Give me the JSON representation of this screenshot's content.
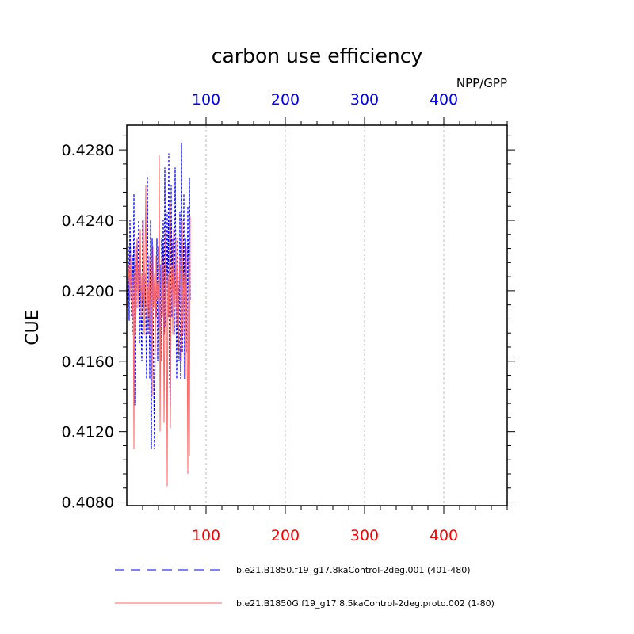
{
  "chart_data": {
    "type": "line",
    "title": "carbon use efficiency",
    "subtitle": "NPP/GPP",
    "ylabel": "CUE",
    "xlabel": "",
    "xlim": [
      0,
      480
    ],
    "ylim": [
      0.4078,
      0.4294
    ],
    "x_ticks": [
      100,
      200,
      300,
      400
    ],
    "x_tick_labels": [
      "100",
      "200",
      "300",
      "400"
    ],
    "y_ticks": [
      0.408,
      0.412,
      0.416,
      0.42,
      0.424,
      0.428
    ],
    "y_tick_labels": [
      "0.4080",
      "0.4120",
      "0.4160",
      "0.4200",
      "0.4240",
      "0.4280"
    ],
    "grid": "vertical dashed",
    "legend_position": "bottom",
    "series": [
      {
        "name": "b.e21.B1850.f19_g17.8kaControl-2deg.001 (401-480)",
        "color": "#0000ff",
        "style": "dashed",
        "axis": "top",
        "x": [
          1,
          2,
          3,
          4,
          5,
          6,
          7,
          8,
          9,
          10,
          11,
          12,
          13,
          14,
          15,
          16,
          17,
          18,
          19,
          20,
          21,
          22,
          23,
          24,
          25,
          26,
          27,
          28,
          29,
          30,
          31,
          32,
          33,
          34,
          35,
          36,
          37,
          38,
          39,
          40,
          41,
          42,
          43,
          44,
          45,
          46,
          47,
          48,
          49,
          50,
          51,
          52,
          53,
          54,
          55,
          56,
          57,
          58,
          59,
          60,
          61,
          62,
          63,
          64,
          65,
          66,
          67,
          68,
          69,
          70,
          71,
          72,
          73,
          74,
          75,
          76,
          77,
          78,
          79,
          80
        ],
        "values": [
          0.4195,
          0.4225,
          0.4183,
          0.424,
          0.421,
          0.4185,
          0.422,
          0.4175,
          0.4255,
          0.4135,
          0.4215,
          0.419,
          0.423,
          0.42,
          0.424,
          0.417,
          0.4215,
          0.4185,
          0.416,
          0.424,
          0.419,
          0.42,
          0.421,
          0.4185,
          0.415,
          0.4265,
          0.4175,
          0.422,
          0.415,
          0.424,
          0.411,
          0.423,
          0.4195,
          0.415,
          0.411,
          0.42,
          0.4185,
          0.423,
          0.416,
          0.4225,
          0.418,
          0.4215,
          0.416,
          0.423,
          0.42,
          0.424,
          0.4175,
          0.427,
          0.418,
          0.42,
          0.4245,
          0.4185,
          0.4278,
          0.415,
          0.4135,
          0.426,
          0.4185,
          0.423,
          0.421,
          0.4175,
          0.427,
          0.4205,
          0.415,
          0.423,
          0.4195,
          0.416,
          0.4245,
          0.415,
          0.4284,
          0.4165,
          0.419,
          0.4255,
          0.415,
          0.423,
          0.4195,
          0.4165,
          0.4248,
          0.4185,
          0.4264,
          0.4195
        ]
      },
      {
        "name": "b.e21.B1850G.f19_g17.8.5kaControl-2deg.proto.002 (1-80)",
        "color": "#ff6666",
        "style": "solid",
        "axis": "bottom",
        "x": [
          1,
          2,
          3,
          4,
          5,
          6,
          7,
          8,
          9,
          10,
          11,
          12,
          13,
          14,
          15,
          16,
          17,
          18,
          19,
          20,
          21,
          22,
          23,
          24,
          25,
          26,
          27,
          28,
          29,
          30,
          31,
          32,
          33,
          34,
          35,
          36,
          37,
          38,
          39,
          40,
          41,
          42,
          43,
          44,
          45,
          46,
          47,
          48,
          49,
          50,
          51,
          52,
          53,
          54,
          55,
          56,
          57,
          58,
          59,
          60,
          61,
          62,
          63,
          64,
          65,
          66,
          67,
          68,
          69,
          70,
          71,
          72,
          73,
          74,
          75,
          76,
          77,
          78,
          79,
          80
        ],
        "values": [
          0.419,
          0.4205,
          0.4215,
          0.4195,
          0.422,
          0.42,
          0.4185,
          0.421,
          0.411,
          0.4225,
          0.4175,
          0.4195,
          0.423,
          0.419,
          0.4215,
          0.42,
          0.4235,
          0.4185,
          0.421,
          0.4195,
          0.424,
          0.4175,
          0.422,
          0.426,
          0.419,
          0.4205,
          0.4185,
          0.422,
          0.4175,
          0.42,
          0.4215,
          0.414,
          0.4225,
          0.419,
          0.421,
          0.4165,
          0.422,
          0.4195,
          0.4205,
          0.418,
          0.4277,
          0.412,
          0.419,
          0.422,
          0.4185,
          0.4215,
          0.4125,
          0.418,
          0.4235,
          0.4195,
          0.4089,
          0.421,
          0.4185,
          0.425,
          0.4122,
          0.42,
          0.4215,
          0.4175,
          0.4235,
          0.419,
          0.4205,
          0.423,
          0.418,
          0.4215,
          0.4165,
          0.42,
          0.422,
          0.419,
          0.416,
          0.424,
          0.4175,
          0.421,
          0.4195,
          0.415,
          0.4225,
          0.4185,
          0.4096,
          0.422,
          0.4106,
          0.4242
        ]
      }
    ]
  }
}
